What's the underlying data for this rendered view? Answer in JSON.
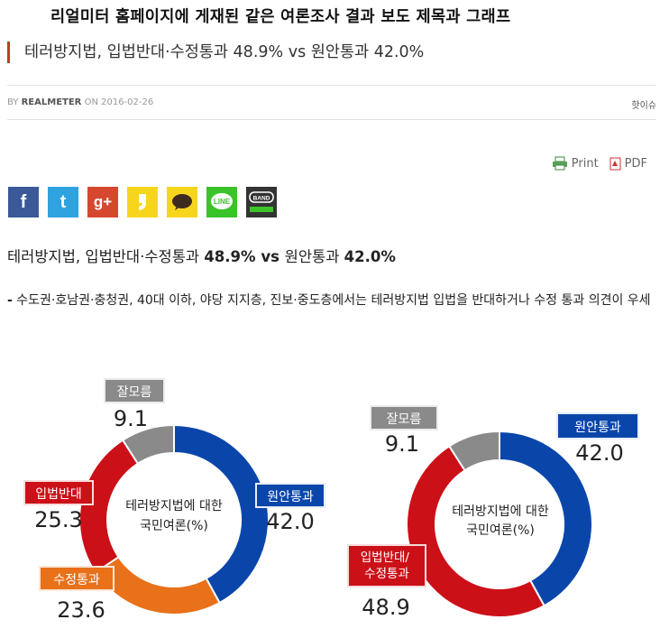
{
  "caption": "리얼미터 홈페이지에 게재된 같은 여론조사 결과 보도 제목과 그래프",
  "headline": "테러방지법, 입법반대·수정통과 48.9% vs 원안통과 42.0%",
  "byline": {
    "prefix": "BY",
    "author": "REALMETER",
    "on": "ON",
    "date": "2016-02-26"
  },
  "category": "핫이슈",
  "tools": {
    "print": "Print",
    "pdf": "PDF"
  },
  "share": {
    "facebook": "f",
    "twitter": "t",
    "googleplus": "g+",
    "band": "BAND",
    "line": "LINE"
  },
  "article_title": {
    "part1": "테러방지법, 입법반대·수정통과 ",
    "num1": "48.9%",
    "vs": " vs ",
    "part2": "원안통과 ",
    "num2": "42.0%"
  },
  "summary": {
    "dash": "-",
    "text": "수도권·호남권·충청권, 40대 이하, 야당 지지층, 진보·중도층에서는 테러방지법 입법을 반대하거나 수정 통과 의견이 우세"
  },
  "colors": {
    "blue": "#0a46aa",
    "red": "#cc1018",
    "orange": "#e8711a",
    "gray": "#8a8a8a",
    "accent": "#c0392b"
  },
  "chart_data": [
    {
      "type": "pie",
      "center_label": [
        "테러방지법에 대한",
        "국민여론(%)"
      ],
      "slices": [
        {
          "label": "원안통과",
          "value": 42.0,
          "color": "#0a46aa"
        },
        {
          "label": "수정통과",
          "value": 23.6,
          "color": "#e8711a"
        },
        {
          "label": "입법반대",
          "value": 25.3,
          "color": "#cc1018"
        },
        {
          "label": "잘모름",
          "value": 9.1,
          "color": "#8a8a8a"
        }
      ]
    },
    {
      "type": "pie",
      "center_label": [
        "테러방지법에 대한",
        "국민여론(%)"
      ],
      "slices": [
        {
          "label": "원안통과",
          "value": 42.0,
          "color": "#0a46aa"
        },
        {
          "label": "입법반대/ 수정통과",
          "value": 48.9,
          "color": "#cc1018"
        },
        {
          "label": "잘모름",
          "value": 9.1,
          "color": "#8a8a8a"
        }
      ]
    }
  ]
}
